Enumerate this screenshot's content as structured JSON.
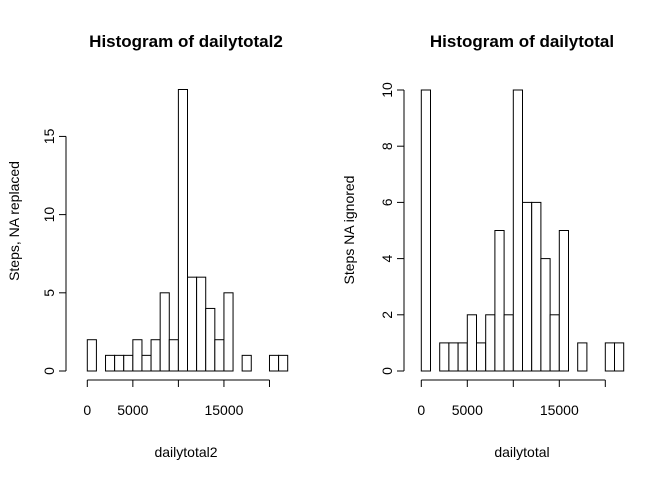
{
  "chart_data": [
    {
      "type": "bar",
      "title": "Histogram of dailytotal2",
      "xlabel": "dailytotal2",
      "ylabel": "Steps, NA replaced",
      "bin_width": 1000,
      "bins": [
        {
          "start": 0,
          "end": 1000,
          "count": 2
        },
        {
          "start": 1000,
          "end": 2000,
          "count": 0
        },
        {
          "start": 2000,
          "end": 3000,
          "count": 1
        },
        {
          "start": 3000,
          "end": 4000,
          "count": 1
        },
        {
          "start": 4000,
          "end": 5000,
          "count": 1
        },
        {
          "start": 5000,
          "end": 6000,
          "count": 2
        },
        {
          "start": 6000,
          "end": 7000,
          "count": 1
        },
        {
          "start": 7000,
          "end": 8000,
          "count": 2
        },
        {
          "start": 8000,
          "end": 9000,
          "count": 5
        },
        {
          "start": 9000,
          "end": 10000,
          "count": 2
        },
        {
          "start": 10000,
          "end": 11000,
          "count": 18
        },
        {
          "start": 11000,
          "end": 12000,
          "count": 6
        },
        {
          "start": 12000,
          "end": 13000,
          "count": 6
        },
        {
          "start": 13000,
          "end": 14000,
          "count": 4
        },
        {
          "start": 14000,
          "end": 15000,
          "count": 2
        },
        {
          "start": 15000,
          "end": 16000,
          "count": 5
        },
        {
          "start": 16000,
          "end": 17000,
          "count": 0
        },
        {
          "start": 17000,
          "end": 18000,
          "count": 1
        },
        {
          "start": 18000,
          "end": 19000,
          "count": 0
        },
        {
          "start": 19000,
          "end": 20000,
          "count": 0
        },
        {
          "start": 20000,
          "end": 21000,
          "count": 1
        },
        {
          "start": 21000,
          "end": 22000,
          "count": 1
        }
      ],
      "xlim": [
        0,
        22000
      ],
      "ylim": [
        0,
        18
      ],
      "x_ticks": [
        0,
        5000,
        10000,
        15000,
        20000
      ],
      "x_tick_labels": [
        "0",
        "5000",
        "",
        "15000",
        ""
      ],
      "y_ticks": [
        0,
        5,
        10,
        15
      ],
      "y_tick_labels": [
        "0",
        "5",
        "10",
        "15"
      ],
      "grid": false,
      "legend": "none"
    },
    {
      "type": "bar",
      "title": "Histogram of dailytotal",
      "xlabel": "dailytotal",
      "ylabel": "Steps NA ignored",
      "bin_width": 1000,
      "bins": [
        {
          "start": 0,
          "end": 1000,
          "count": 10
        },
        {
          "start": 1000,
          "end": 2000,
          "count": 0
        },
        {
          "start": 2000,
          "end": 3000,
          "count": 1
        },
        {
          "start": 3000,
          "end": 4000,
          "count": 1
        },
        {
          "start": 4000,
          "end": 5000,
          "count": 1
        },
        {
          "start": 5000,
          "end": 6000,
          "count": 2
        },
        {
          "start": 6000,
          "end": 7000,
          "count": 1
        },
        {
          "start": 7000,
          "end": 8000,
          "count": 2
        },
        {
          "start": 8000,
          "end": 9000,
          "count": 5
        },
        {
          "start": 9000,
          "end": 10000,
          "count": 2
        },
        {
          "start": 10000,
          "end": 11000,
          "count": 10
        },
        {
          "start": 11000,
          "end": 12000,
          "count": 6
        },
        {
          "start": 12000,
          "end": 13000,
          "count": 6
        },
        {
          "start": 13000,
          "end": 14000,
          "count": 4
        },
        {
          "start": 14000,
          "end": 15000,
          "count": 2
        },
        {
          "start": 15000,
          "end": 16000,
          "count": 5
        },
        {
          "start": 16000,
          "end": 17000,
          "count": 0
        },
        {
          "start": 17000,
          "end": 18000,
          "count": 1
        },
        {
          "start": 18000,
          "end": 19000,
          "count": 0
        },
        {
          "start": 19000,
          "end": 20000,
          "count": 0
        },
        {
          "start": 20000,
          "end": 21000,
          "count": 1
        },
        {
          "start": 21000,
          "end": 22000,
          "count": 1
        }
      ],
      "xlim": [
        0,
        22000
      ],
      "ylim": [
        0,
        10
      ],
      "x_ticks": [
        0,
        5000,
        10000,
        15000,
        20000
      ],
      "x_tick_labels": [
        "0",
        "5000",
        "",
        "15000",
        ""
      ],
      "y_ticks": [
        0,
        2,
        4,
        6,
        8,
        10
      ],
      "y_tick_labels": [
        "0",
        "2",
        "4",
        "6",
        "8",
        "10"
      ],
      "grid": false,
      "legend": "none"
    }
  ]
}
